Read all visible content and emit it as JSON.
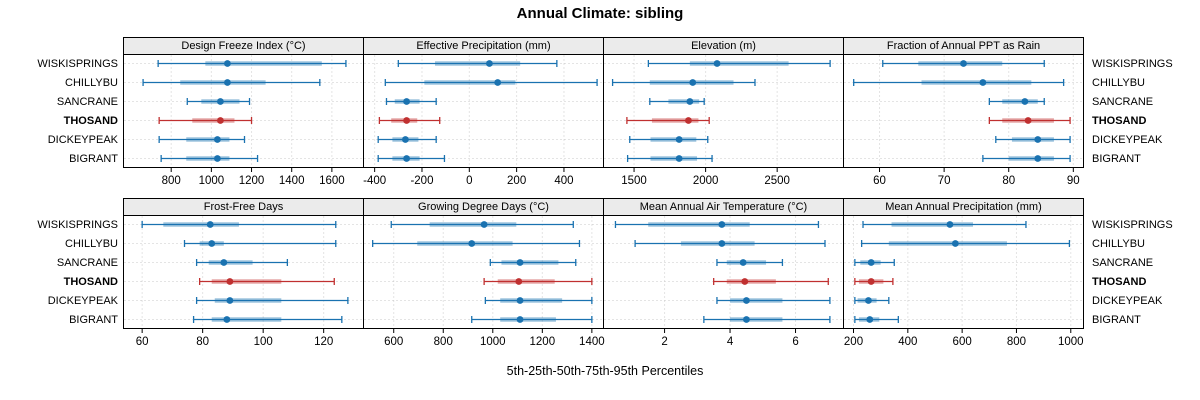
{
  "title": "Annual Climate: sibling",
  "caption": "5th-25th-50th-75th-95th Percentiles",
  "stations": [
    "WISKISPRINGS",
    "CHILLYBU",
    "SANCRANE",
    "THOSAND",
    "DICKEYPEAK",
    "BIGRANT"
  ],
  "highlight_station": "THOSAND",
  "percentile_labels": [
    "5th",
    "25th",
    "50th",
    "75th",
    "95th"
  ],
  "colors": {
    "series_normal": "#1A72B0",
    "series_highlight": "#C03030",
    "band_opacity": 0.42,
    "strip_background": "#EBEBEB",
    "panel_border": "#000000",
    "gridline": "#C9C9C9",
    "text": "#000000"
  },
  "chart_data": [
    {
      "type": "dotplot-whisker",
      "row": 0,
      "col": 0,
      "title": "Design Freeze Index (°C)",
      "ticks": [
        800,
        1000,
        1200,
        1400,
        1600
      ],
      "domain": [
        565,
        1755
      ],
      "series": [
        {
          "name": "WISKISPRINGS",
          "values": [
            735,
            970,
            1080,
            1550,
            1670
          ]
        },
        {
          "name": "CHILLYBU",
          "values": [
            660,
            845,
            1080,
            1270,
            1540
          ]
        },
        {
          "name": "SANCRANE",
          "values": [
            880,
            950,
            1045,
            1140,
            1190
          ]
        },
        {
          "name": "THOSAND",
          "values": [
            740,
            905,
            1045,
            1115,
            1200
          ]
        },
        {
          "name": "DICKEYPEAK",
          "values": [
            740,
            875,
            1030,
            1090,
            1165
          ]
        },
        {
          "name": "BIGRANT",
          "values": [
            750,
            875,
            1030,
            1090,
            1230
          ]
        }
      ]
    },
    {
      "type": "dotplot-whisker",
      "row": 0,
      "col": 1,
      "title": "Effective Precipitation (mm)",
      "ticks": [
        -400,
        -200,
        0,
        200,
        400
      ],
      "domain": [
        -445,
        565
      ],
      "series": [
        {
          "name": "WISKISPRINGS",
          "values": [
            -300,
            -145,
            85,
            215,
            370
          ]
        },
        {
          "name": "CHILLYBU",
          "values": [
            -355,
            -190,
            120,
            195,
            540
          ]
        },
        {
          "name": "SANCRANE",
          "values": [
            -350,
            -315,
            -265,
            -210,
            -140
          ]
        },
        {
          "name": "THOSAND",
          "values": [
            -380,
            -330,
            -265,
            -220,
            -125
          ]
        },
        {
          "name": "DICKEYPEAK",
          "values": [
            -385,
            -325,
            -270,
            -215,
            -140
          ]
        },
        {
          "name": "BIGRANT",
          "values": [
            -385,
            -325,
            -265,
            -210,
            -105
          ]
        }
      ]
    },
    {
      "type": "dotplot-whisker",
      "row": 0,
      "col": 2,
      "title": "Elevation (m)",
      "ticks": [
        1500,
        2000,
        2500
      ],
      "domain": [
        1290,
        2960
      ],
      "series": [
        {
          "name": "WISKISPRINGS",
          "values": [
            1600,
            1890,
            2080,
            2580,
            2870
          ]
        },
        {
          "name": "CHILLYBU",
          "values": [
            1350,
            1610,
            1910,
            2195,
            2345
          ]
        },
        {
          "name": "SANCRANE",
          "values": [
            1610,
            1740,
            1890,
            1955,
            1990
          ]
        },
        {
          "name": "THOSAND",
          "values": [
            1450,
            1625,
            1880,
            1950,
            2025
          ]
        },
        {
          "name": "DICKEYPEAK",
          "values": [
            1470,
            1615,
            1815,
            1935,
            2015
          ]
        },
        {
          "name": "BIGRANT",
          "values": [
            1455,
            1615,
            1815,
            1940,
            2045
          ]
        }
      ]
    },
    {
      "type": "dotplot-whisker",
      "row": 0,
      "col": 3,
      "title": "Fraction of Annual PPT as Rain",
      "ticks": [
        60,
        70,
        80,
        90
      ],
      "domain": [
        54.5,
        91.5
      ],
      "series": [
        {
          "name": "WISKISPRINGS",
          "values": [
            60.5,
            66,
            73,
            79,
            85.5
          ]
        },
        {
          "name": "CHILLYBU",
          "values": [
            56,
            66.5,
            76,
            83.5,
            88.5
          ]
        },
        {
          "name": "SANCRANE",
          "values": [
            77,
            79,
            82.5,
            84.5,
            85.5
          ]
        },
        {
          "name": "THOSAND",
          "values": [
            77,
            79,
            83,
            87,
            89.5
          ]
        },
        {
          "name": "DICKEYPEAK",
          "values": [
            78,
            80.5,
            84.5,
            87,
            89.5
          ]
        },
        {
          "name": "BIGRANT",
          "values": [
            76,
            80,
            84.5,
            87,
            89.5
          ]
        }
      ]
    },
    {
      "type": "dotplot-whisker",
      "row": 1,
      "col": 0,
      "title": "Frost-Free Days",
      "ticks": [
        60,
        80,
        100,
        120
      ],
      "domain": [
        54,
        133
      ],
      "series": [
        {
          "name": "WISKISPRINGS",
          "values": [
            60,
            67,
            82.5,
            92,
            124
          ]
        },
        {
          "name": "CHILLYBU",
          "values": [
            74,
            79,
            83,
            87,
            124
          ]
        },
        {
          "name": "SANCRANE",
          "values": [
            78,
            82,
            87,
            96.5,
            108
          ]
        },
        {
          "name": "THOSAND",
          "values": [
            79,
            83,
            89,
            106,
            123.5
          ]
        },
        {
          "name": "DICKEYPEAK",
          "values": [
            78,
            84,
            89,
            106,
            128
          ]
        },
        {
          "name": "BIGRANT",
          "values": [
            77,
            83,
            88,
            106,
            126
          ]
        }
      ]
    },
    {
      "type": "dotplot-whisker",
      "row": 1,
      "col": 1,
      "title": "Growing Degree Days (°C)",
      "ticks": [
        600,
        800,
        1000,
        1200,
        1400
      ],
      "domain": [
        480,
        1445
      ],
      "series": [
        {
          "name": "WISKISPRINGS",
          "values": [
            590,
            745,
            965,
            1095,
            1325
          ]
        },
        {
          "name": "CHILLYBU",
          "values": [
            515,
            695,
            915,
            1080,
            1350
          ]
        },
        {
          "name": "SANCRANE",
          "values": [
            990,
            1035,
            1110,
            1265,
            1335
          ]
        },
        {
          "name": "THOSAND",
          "values": [
            965,
            1020,
            1105,
            1250,
            1400
          ]
        },
        {
          "name": "DICKEYPEAK",
          "values": [
            970,
            1030,
            1110,
            1280,
            1400
          ]
        },
        {
          "name": "BIGRANT",
          "values": [
            915,
            1030,
            1110,
            1255,
            1400
          ]
        }
      ]
    },
    {
      "type": "dotplot-whisker",
      "row": 1,
      "col": 2,
      "title": "Mean Annual Air Temperature (°C)",
      "ticks": [
        2,
        4,
        6
      ],
      "domain": [
        0.15,
        7.45
      ],
      "series": [
        {
          "name": "WISKISPRINGS",
          "values": [
            0.5,
            1.5,
            3.75,
            4.6,
            6.7
          ]
        },
        {
          "name": "CHILLYBU",
          "values": [
            1.1,
            2.5,
            3.75,
            4.75,
            6.9
          ]
        },
        {
          "name": "SANCRANE",
          "values": [
            3.6,
            3.9,
            4.4,
            5.1,
            5.6
          ]
        },
        {
          "name": "THOSAND",
          "values": [
            3.5,
            3.9,
            4.45,
            5.4,
            7.0
          ]
        },
        {
          "name": "DICKEYPEAK",
          "values": [
            3.6,
            4.0,
            4.5,
            5.6,
            7.05
          ]
        },
        {
          "name": "BIGRANT",
          "values": [
            3.2,
            4.0,
            4.5,
            5.6,
            7.05
          ]
        }
      ]
    },
    {
      "type": "dotplot-whisker",
      "row": 1,
      "col": 3,
      "title": "Mean Annual Precipitation (mm)",
      "ticks": [
        200,
        400,
        600,
        800,
        1000
      ],
      "domain": [
        165,
        1045
      ],
      "series": [
        {
          "name": "WISKISPRINGS",
          "values": [
            235,
            340,
            555,
            640,
            835
          ]
        },
        {
          "name": "CHILLYBU",
          "values": [
            230,
            330,
            575,
            765,
            995
          ]
        },
        {
          "name": "SANCRANE",
          "values": [
            205,
            225,
            265,
            300,
            350
          ]
        },
        {
          "name": "THOSAND",
          "values": [
            205,
            220,
            265,
            310,
            345
          ]
        },
        {
          "name": "DICKEYPEAK",
          "values": [
            205,
            215,
            255,
            285,
            330
          ]
        },
        {
          "name": "BIGRANT",
          "values": [
            205,
            220,
            260,
            295,
            365
          ]
        }
      ]
    }
  ]
}
